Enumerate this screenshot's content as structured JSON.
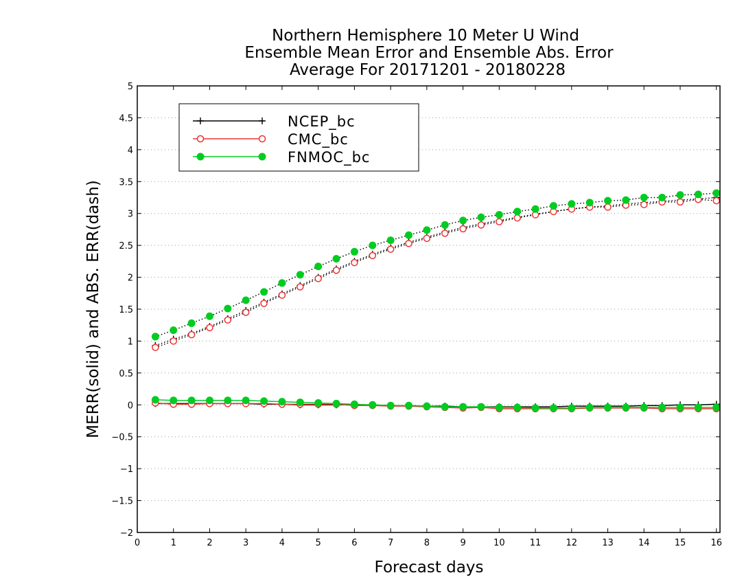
{
  "chart_data": {
    "type": "line",
    "title": [
      "Northern Hemisphere 10 Meter U Wind",
      "Ensemble Mean Error and Ensemble Abs. Error",
      "Average For 20171201 - 20180228"
    ],
    "xlabel": "Forecast days",
    "ylabel": "MERR(solid) and ABS. ERR(dash)",
    "xlim": [
      0,
      16.1
    ],
    "ylim": [
      -2,
      5
    ],
    "xticks": [
      "0",
      "1",
      "2",
      "3",
      "4",
      "5",
      "6",
      "7",
      "8",
      "9",
      "10",
      "11",
      "12",
      "13",
      "14",
      "15",
      "16"
    ],
    "yticks": [
      "−2",
      "−1.5",
      "−1",
      "−0.5",
      "0",
      "0.5",
      "1",
      "1.5",
      "2",
      "2.5",
      "3",
      "3.5",
      "4",
      "4.5",
      "5"
    ],
    "grid": "horizontal dotted",
    "legend_position": "top-left",
    "x": [
      0.5,
      1,
      1.5,
      2,
      2.5,
      3,
      3.5,
      4,
      4.5,
      5,
      5.5,
      6,
      6.5,
      7,
      7.5,
      8,
      8.5,
      9,
      9.5,
      10,
      10.5,
      11,
      11.5,
      12,
      12.5,
      13,
      13.5,
      14,
      14.5,
      15,
      15.5,
      16
    ],
    "series": [
      {
        "name": "NCEP_bc",
        "color": "#000000",
        "marker": "plus",
        "merr": [
          0.02,
          0.02,
          0.02,
          0.02,
          0.02,
          0.02,
          0.01,
          0.01,
          0.0,
          0.0,
          0.0,
          0.0,
          0.0,
          -0.01,
          -0.01,
          -0.02,
          -0.02,
          -0.03,
          -0.03,
          -0.03,
          -0.03,
          -0.03,
          -0.03,
          -0.02,
          -0.02,
          -0.02,
          -0.02,
          -0.01,
          -0.01,
          0.0,
          0.0,
          0.01
        ],
        "abs_err": [
          0.93,
          1.03,
          1.12,
          1.23,
          1.35,
          1.48,
          1.61,
          1.74,
          1.87,
          2.0,
          2.13,
          2.25,
          2.36,
          2.46,
          2.55,
          2.63,
          2.71,
          2.78,
          2.84,
          2.89,
          2.94,
          2.99,
          3.03,
          3.07,
          3.1,
          3.12,
          3.15,
          3.17,
          3.19,
          3.21,
          3.23,
          3.25
        ]
      },
      {
        "name": "CMC_bc",
        "color": "#ee3333",
        "marker": "open-circle",
        "merr": [
          0.03,
          0.01,
          0.01,
          0.02,
          0.02,
          0.02,
          0.02,
          0.01,
          0.01,
          0.01,
          0.01,
          -0.01,
          -0.01,
          -0.02,
          -0.02,
          -0.03,
          -0.04,
          -0.05,
          -0.04,
          -0.06,
          -0.06,
          -0.06,
          -0.06,
          -0.06,
          -0.05,
          -0.05,
          -0.05,
          -0.05,
          -0.06,
          -0.06,
          -0.06,
          -0.06
        ],
        "abs_err": [
          0.9,
          1.0,
          1.1,
          1.21,
          1.33,
          1.45,
          1.59,
          1.72,
          1.85,
          1.98,
          2.11,
          2.23,
          2.34,
          2.44,
          2.53,
          2.61,
          2.69,
          2.76,
          2.82,
          2.87,
          2.93,
          2.98,
          3.03,
          3.07,
          3.1,
          3.1,
          3.13,
          3.14,
          3.18,
          3.18,
          3.22,
          3.2
        ]
      },
      {
        "name": "FNMOC_bc",
        "color": "#00cc22",
        "marker": "filled-circle",
        "merr": [
          0.08,
          0.07,
          0.07,
          0.07,
          0.07,
          0.07,
          0.06,
          0.05,
          0.04,
          0.03,
          0.02,
          0.01,
          0.0,
          -0.01,
          -0.01,
          -0.02,
          -0.03,
          -0.03,
          -0.03,
          -0.04,
          -0.04,
          -0.05,
          -0.05,
          -0.05,
          -0.04,
          -0.04,
          -0.04,
          -0.04,
          -0.04,
          -0.04,
          -0.04,
          -0.04
        ],
        "abs_err": [
          1.07,
          1.17,
          1.28,
          1.39,
          1.51,
          1.64,
          1.77,
          1.91,
          2.04,
          2.17,
          2.29,
          2.4,
          2.5,
          2.58,
          2.66,
          2.74,
          2.82,
          2.89,
          2.94,
          2.98,
          3.03,
          3.07,
          3.12,
          3.15,
          3.17,
          3.2,
          3.21,
          3.25,
          3.25,
          3.29,
          3.3,
          3.32
        ]
      }
    ]
  }
}
